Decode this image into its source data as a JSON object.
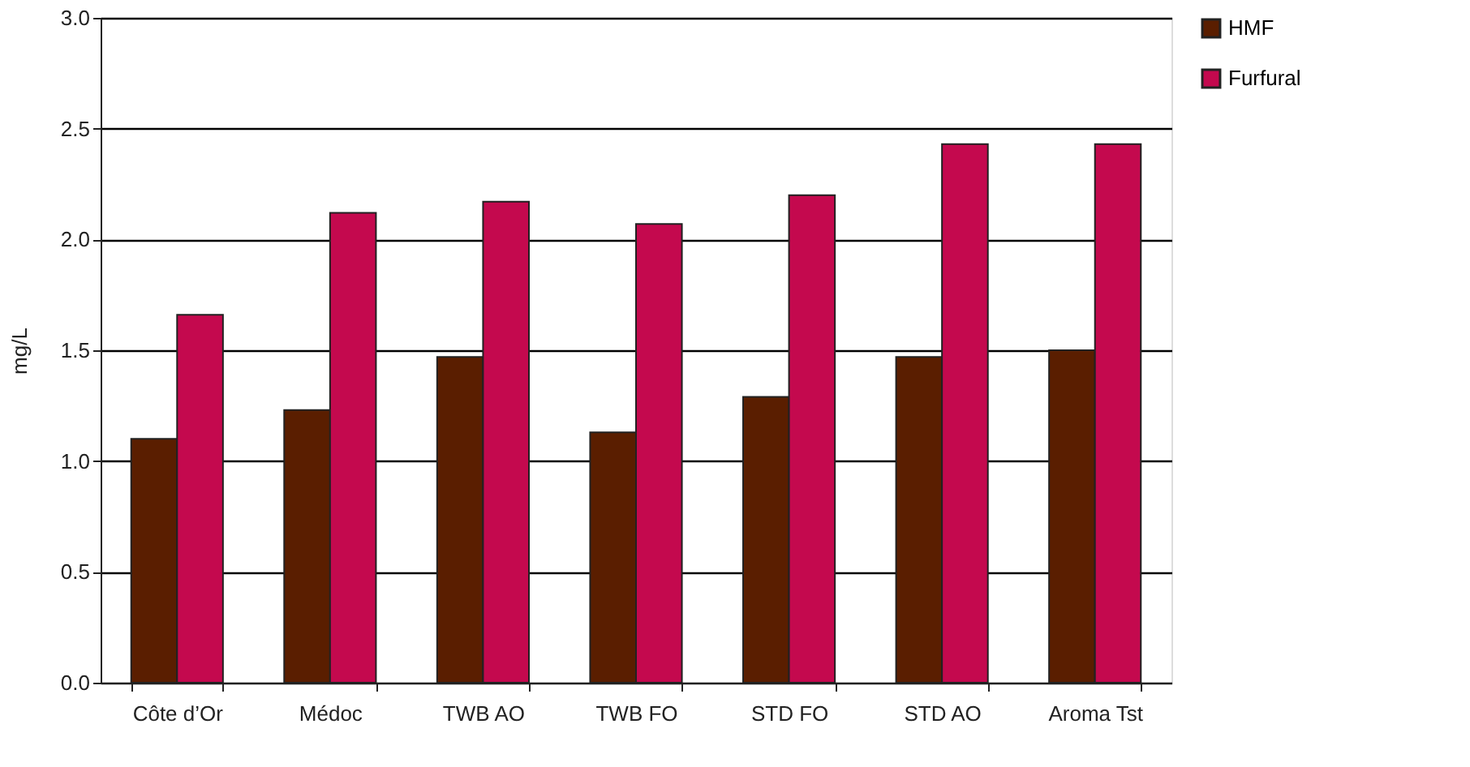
{
  "chart_data": {
    "type": "bar",
    "ylabel": "mg/L",
    "categories": [
      "Côte d’Or",
      "Médoc",
      "TWB AO",
      "TWB FO",
      "STD FO",
      "STD AO",
      "Aroma Tst"
    ],
    "series": [
      {
        "name": "HMF",
        "color": "#5a1e00",
        "values": [
          1.1,
          1.23,
          1.47,
          1.13,
          1.29,
          1.47,
          1.5
        ]
      },
      {
        "name": "Furfural",
        "color": "#c4094e",
        "values": [
          1.66,
          2.12,
          2.17,
          2.07,
          2.2,
          2.43,
          2.43
        ]
      }
    ],
    "ylim": [
      0,
      3.0
    ],
    "yticks": [
      {
        "value": 0,
        "label": "0.0"
      },
      0.5,
      {
        "value": 1,
        "label": "1.0"
      },
      1.5,
      {
        "value": 2,
        "label": "2.0"
      },
      2.5,
      {
        "value": 3,
        "label": "3.0"
      }
    ],
    "grid": "y",
    "legend": "right"
  }
}
